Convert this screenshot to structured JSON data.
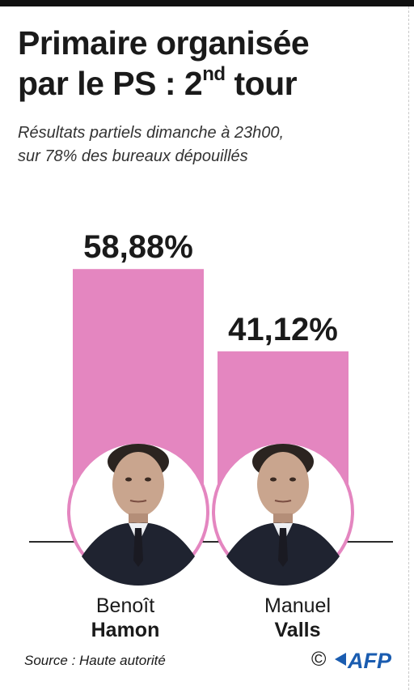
{
  "title": {
    "line1": "Primaire organisée",
    "line2_main": "par le PS : 2",
    "line2_sup": "nd",
    "line2_end": " tour"
  },
  "subtitle": {
    "line1": "Résultats partiels dimanche à 23h00,",
    "line2": "sur 78% des bureaux dépouillés"
  },
  "colors": {
    "bar": "#e486c0",
    "ring": "#e486c0",
    "text": "#1a1a1a",
    "afp_blue": "#1a5cb0"
  },
  "chart_data": {
    "type": "bar",
    "categories": [
      "Benoît Hamon",
      "Manuel Valls"
    ],
    "values": [
      58.88,
      41.12
    ],
    "value_labels": [
      "58,88%",
      "41,12%"
    ],
    "unit": "%",
    "ylim": [
      0,
      100
    ],
    "grid": false,
    "legend": "none"
  },
  "candidates": [
    {
      "first_name": "Benoît",
      "last_name": "Hamon",
      "portrait_icon": "portrait-hamon-icon"
    },
    {
      "first_name": "Manuel",
      "last_name": "Valls",
      "portrait_icon": "portrait-valls-icon"
    }
  ],
  "footer": {
    "source": "Source : Haute autorité",
    "copyright": "©",
    "agency": "AFP"
  }
}
